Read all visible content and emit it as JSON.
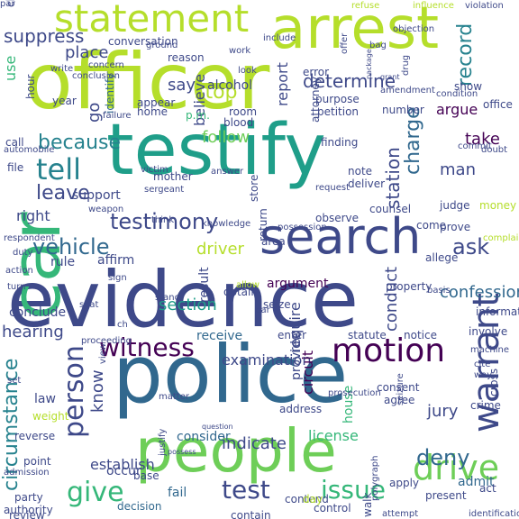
{
  "cloud": {
    "colors": [
      "#440154",
      "#482878",
      "#3e4989",
      "#31688e",
      "#26828e",
      "#1f9e89",
      "#35b779",
      "#6ece58",
      "#b5de2b",
      "#d8e219"
    ],
    "words": [
      {
        "text": "evidence",
        "color": "#3e4989"
      },
      {
        "text": "police",
        "color": "#31688e"
      },
      {
        "text": "officer",
        "color": "#b5de2b"
      },
      {
        "text": "testify",
        "color": "#1f9e89"
      },
      {
        "text": "people",
        "color": "#6ece58"
      },
      {
        "text": "arrest",
        "color": "#b5de2b"
      },
      {
        "text": "car",
        "color": "#35b779"
      },
      {
        "text": "search",
        "color": "#3e4989"
      },
      {
        "text": "statement",
        "color": "#b5de2b"
      },
      {
        "text": "witness",
        "color": "#440154"
      },
      {
        "text": "motion",
        "color": "#440154"
      },
      {
        "text": "drive",
        "color": "#6ece58"
      },
      {
        "text": "testimony",
        "color": "#3e4989"
      },
      {
        "text": "vehicle",
        "color": "#31688e"
      },
      {
        "text": "tell",
        "color": "#26828e"
      },
      {
        "text": "suppress",
        "color": "#3e4989"
      },
      {
        "text": "person",
        "color": "#3e4989"
      },
      {
        "text": "warrant",
        "color": "#3e4989"
      },
      {
        "text": "because",
        "color": "#26828e"
      },
      {
        "text": "test",
        "color": "#3e4989"
      },
      {
        "text": "give",
        "color": "#35b779"
      },
      {
        "text": "issue",
        "color": "#35b779"
      },
      {
        "text": "deny",
        "color": "#31688e"
      },
      {
        "text": "determine",
        "color": "#3e4989"
      },
      {
        "text": "ask",
        "color": "#3e4989"
      },
      {
        "text": "leave",
        "color": "#3e4989"
      },
      {
        "text": "circumstance",
        "color": "#26828e"
      },
      {
        "text": "stop",
        "color": "#b5de2b"
      },
      {
        "text": "follow",
        "color": "#6ece58"
      },
      {
        "text": "take",
        "color": "#440154"
      },
      {
        "text": "place",
        "color": "#3e4989"
      },
      {
        "text": "say",
        "color": "#3e4989"
      },
      {
        "text": "report",
        "color": "#3e4989"
      },
      {
        "text": "record",
        "color": "#26828e"
      },
      {
        "text": "hearing",
        "color": "#3e4989"
      },
      {
        "text": "jury",
        "color": "#3e4989"
      },
      {
        "text": "station",
        "color": "#3e4989"
      },
      {
        "text": "driver",
        "color": "#b5de2b"
      },
      {
        "text": "charge",
        "color": "#31688e"
      },
      {
        "text": "right",
        "color": "#3e4989"
      },
      {
        "text": "man",
        "color": "#3e4989"
      },
      {
        "text": "argue",
        "color": "#440154"
      },
      {
        "text": "indicate",
        "color": "#3e4989"
      },
      {
        "text": "conduct",
        "color": "#3e4989"
      },
      {
        "text": "confession",
        "color": "#31688e"
      },
      {
        "text": "rule",
        "color": "#3e4989"
      },
      {
        "text": "establish",
        "color": "#3e4989"
      },
      {
        "text": "know",
        "color": "#3e4989"
      },
      {
        "text": "believe",
        "color": "#3e4989"
      },
      {
        "text": "section",
        "color": "#1f9e89"
      },
      {
        "text": "use",
        "color": "#35b779"
      },
      {
        "text": "alcohol",
        "color": "#3e4989"
      },
      {
        "text": "argument",
        "color": "#440154"
      },
      {
        "text": "examination",
        "color": "#3e4989"
      },
      {
        "text": "circuit",
        "color": "#440154"
      },
      {
        "text": "license",
        "color": "#35b779"
      },
      {
        "text": "consider",
        "color": "#31688e"
      },
      {
        "text": "receive",
        "color": "#31688e"
      },
      {
        "text": "require",
        "color": "#3e4989"
      },
      {
        "text": "admit",
        "color": "#31688e"
      },
      {
        "text": "support",
        "color": "#3e4989"
      },
      {
        "text": "house",
        "color": "#35b779"
      },
      {
        "text": "conclude",
        "color": "#3e4989"
      },
      {
        "text": "affirm",
        "color": "#3e4989"
      },
      {
        "text": "result",
        "color": "#3e4989"
      },
      {
        "text": "provide",
        "color": "#3e4989"
      },
      {
        "text": "fail",
        "color": "#31688e"
      },
      {
        "text": "occur",
        "color": "#3e4989"
      },
      {
        "text": "decision",
        "color": "#31688e"
      },
      {
        "text": "contain",
        "color": "#3e4989"
      },
      {
        "text": "control",
        "color": "#3e4989"
      },
      {
        "text": "contend",
        "color": "#3e4989"
      },
      {
        "text": "day",
        "color": "#b5de2b"
      },
      {
        "text": "law",
        "color": "#3e4989"
      },
      {
        "text": "party",
        "color": "#3e4989"
      },
      {
        "text": "review",
        "color": "#3e4989"
      },
      {
        "text": "go",
        "color": "#3e4989"
      },
      {
        "text": "identify",
        "color": "#31688e"
      },
      {
        "text": "appear",
        "color": "#3e4989"
      },
      {
        "text": "p.m.",
        "color": "#35b779"
      },
      {
        "text": "room",
        "color": "#3e4989"
      },
      {
        "text": "blood",
        "color": "#3e4989"
      },
      {
        "text": "home",
        "color": "#3e4989"
      },
      {
        "text": "reason",
        "color": "#3e4989"
      },
      {
        "text": "conversation",
        "color": "#3e4989"
      },
      {
        "text": "purpose",
        "color": "#3e4989"
      },
      {
        "text": "petition",
        "color": "#3e4989"
      },
      {
        "text": "number",
        "color": "#3e4989"
      },
      {
        "text": "attorney",
        "color": "#3e4989"
      },
      {
        "text": "finding",
        "color": "#3e4989"
      },
      {
        "text": "note",
        "color": "#3e4989"
      },
      {
        "text": "deliver",
        "color": "#3e4989"
      },
      {
        "text": "counsel",
        "color": "#3e4989"
      },
      {
        "text": "observe",
        "color": "#3e4989"
      },
      {
        "text": "judge",
        "color": "#3e4989"
      },
      {
        "text": "prove",
        "color": "#3e4989"
      },
      {
        "text": "come",
        "color": "#3e4989"
      },
      {
        "text": "allege",
        "color": "#3e4989"
      },
      {
        "text": "property",
        "color": "#3e4989"
      },
      {
        "text": "notice",
        "color": "#3e4989"
      },
      {
        "text": "involve",
        "color": "#3e4989"
      },
      {
        "text": "statute",
        "color": "#3e4989"
      },
      {
        "text": "enter",
        "color": "#3e4989"
      },
      {
        "text": "seize",
        "color": "#3e4989"
      },
      {
        "text": "obtain",
        "color": "#3e4989"
      },
      {
        "text": "consent",
        "color": "#3e4989"
      },
      {
        "text": "agree",
        "color": "#3e4989"
      },
      {
        "text": "crime",
        "color": "#3e4989"
      },
      {
        "text": "apply",
        "color": "#3e4989"
      },
      {
        "text": "present",
        "color": "#3e4989"
      },
      {
        "text": "act",
        "color": "#3e4989"
      },
      {
        "text": "cross",
        "color": "#3e4989"
      },
      {
        "text": "information",
        "color": "#3e4989"
      },
      {
        "text": "address",
        "color": "#3e4989"
      },
      {
        "text": "office",
        "color": "#3e4989"
      },
      {
        "text": "show",
        "color": "#3e4989"
      },
      {
        "text": "error",
        "color": "#3e4989"
      },
      {
        "text": "year",
        "color": "#3e4989"
      },
      {
        "text": "call",
        "color": "#3e4989"
      },
      {
        "text": "claim",
        "color": "#3e4989"
      },
      {
        "text": "file",
        "color": "#3e4989"
      },
      {
        "text": "hour",
        "color": "#3e4989"
      },
      {
        "text": "automobile",
        "color": "#3e4989"
      },
      {
        "text": "mother",
        "color": "#3e4989"
      },
      {
        "text": "store",
        "color": "#3e4989"
      },
      {
        "text": "return",
        "color": "#3e4989"
      },
      {
        "text": "possession",
        "color": "#3e4989"
      },
      {
        "text": "request",
        "color": "#3e4989"
      },
      {
        "text": "area",
        "color": "#3e4989"
      },
      {
        "text": "allow",
        "color": "#b5de2b"
      },
      {
        "text": "money",
        "color": "#b5de2b"
      },
      {
        "text": "complaint",
        "color": "#b5de2b"
      },
      {
        "text": "weight",
        "color": "#b5de2b"
      },
      {
        "text": "reverse",
        "color": "#3e4989"
      },
      {
        "text": "point",
        "color": "#3e4989"
      },
      {
        "text": "base",
        "color": "#3e4989"
      },
      {
        "text": "walk",
        "color": "#3e4989"
      },
      {
        "text": "authority",
        "color": "#3e4989"
      },
      {
        "text": "refuse",
        "color": "#b5de2b"
      },
      {
        "text": "influence",
        "color": "#b5de2b"
      },
      {
        "text": "violation",
        "color": "#3e4989"
      },
      {
        "text": "include",
        "color": "#3e4989"
      },
      {
        "text": "objection",
        "color": "#3e4989"
      },
      {
        "text": "bag",
        "color": "#3e4989"
      },
      {
        "text": "offer",
        "color": "#3e4989"
      },
      {
        "text": "drug",
        "color": "#3e4989"
      },
      {
        "text": "amendment",
        "color": "#3e4989"
      },
      {
        "text": "ground",
        "color": "#3e4989"
      },
      {
        "text": "concern",
        "color": "#3e4989"
      },
      {
        "text": "conclusion",
        "color": "#3e4989"
      },
      {
        "text": "write",
        "color": "#3e4989"
      },
      {
        "text": "failure",
        "color": "#3e4989"
      },
      {
        "text": "victim",
        "color": "#3e4989"
      },
      {
        "text": "answer",
        "color": "#3e4989"
      },
      {
        "text": "weapon",
        "color": "#3e4989"
      },
      {
        "text": "respondent",
        "color": "#3e4989"
      },
      {
        "text": "duty",
        "color": "#3e4989"
      },
      {
        "text": "action",
        "color": "#3e4989"
      },
      {
        "text": "turn",
        "color": "#3e4989"
      },
      {
        "text": "sign",
        "color": "#3e4989"
      },
      {
        "text": "seat",
        "color": "#3e4989"
      },
      {
        "text": "proceeding",
        "color": "#3e4989"
      },
      {
        "text": "view",
        "color": "#3e4989"
      },
      {
        "text": "set",
        "color": "#3e4989"
      },
      {
        "text": "admission",
        "color": "#3e4989"
      },
      {
        "text": "matter",
        "color": "#3e4989"
      },
      {
        "text": "prosecution",
        "color": "#3e4989"
      },
      {
        "text": "basis",
        "color": "#3e4989"
      },
      {
        "text": "machine",
        "color": "#3e4989"
      },
      {
        "text": "cite",
        "color": "#3e4989"
      },
      {
        "text": "way",
        "color": "#3e4989"
      },
      {
        "text": "seizure",
        "color": "#3e4989"
      },
      {
        "text": "polygraph",
        "color": "#3e4989"
      },
      {
        "text": "attempt",
        "color": "#3e4989"
      },
      {
        "text": "identification",
        "color": "#3e4989"
      },
      {
        "text": "commit",
        "color": "#3e4989"
      },
      {
        "text": "doubt",
        "color": "#3e4989"
      },
      {
        "text": "condition",
        "color": "#3e4989"
      },
      {
        "text": "stand",
        "color": "#3e4989"
      },
      {
        "text": "justify",
        "color": "#3e4989"
      },
      {
        "text": "possess",
        "color": "#3e4989"
      },
      {
        "text": "question",
        "color": "#3e4989"
      },
      {
        "text": "sergeant",
        "color": "#3e4989"
      },
      {
        "text": "think",
        "color": "#3e4989"
      },
      {
        "text": "work",
        "color": "#3e4989"
      },
      {
        "text": "look",
        "color": "#3e4989"
      },
      {
        "text": "package",
        "color": "#3e4989"
      },
      {
        "text": "grant",
        "color": "#3e4989"
      },
      {
        "text": "knowledge",
        "color": "#3e4989"
      },
      {
        "text": "car",
        "color": "#3e4989"
      },
      {
        "text": "ch",
        "color": "#3e4989"
      },
      {
        "text": "par",
        "color": "#3e4989"
      }
    ]
  }
}
